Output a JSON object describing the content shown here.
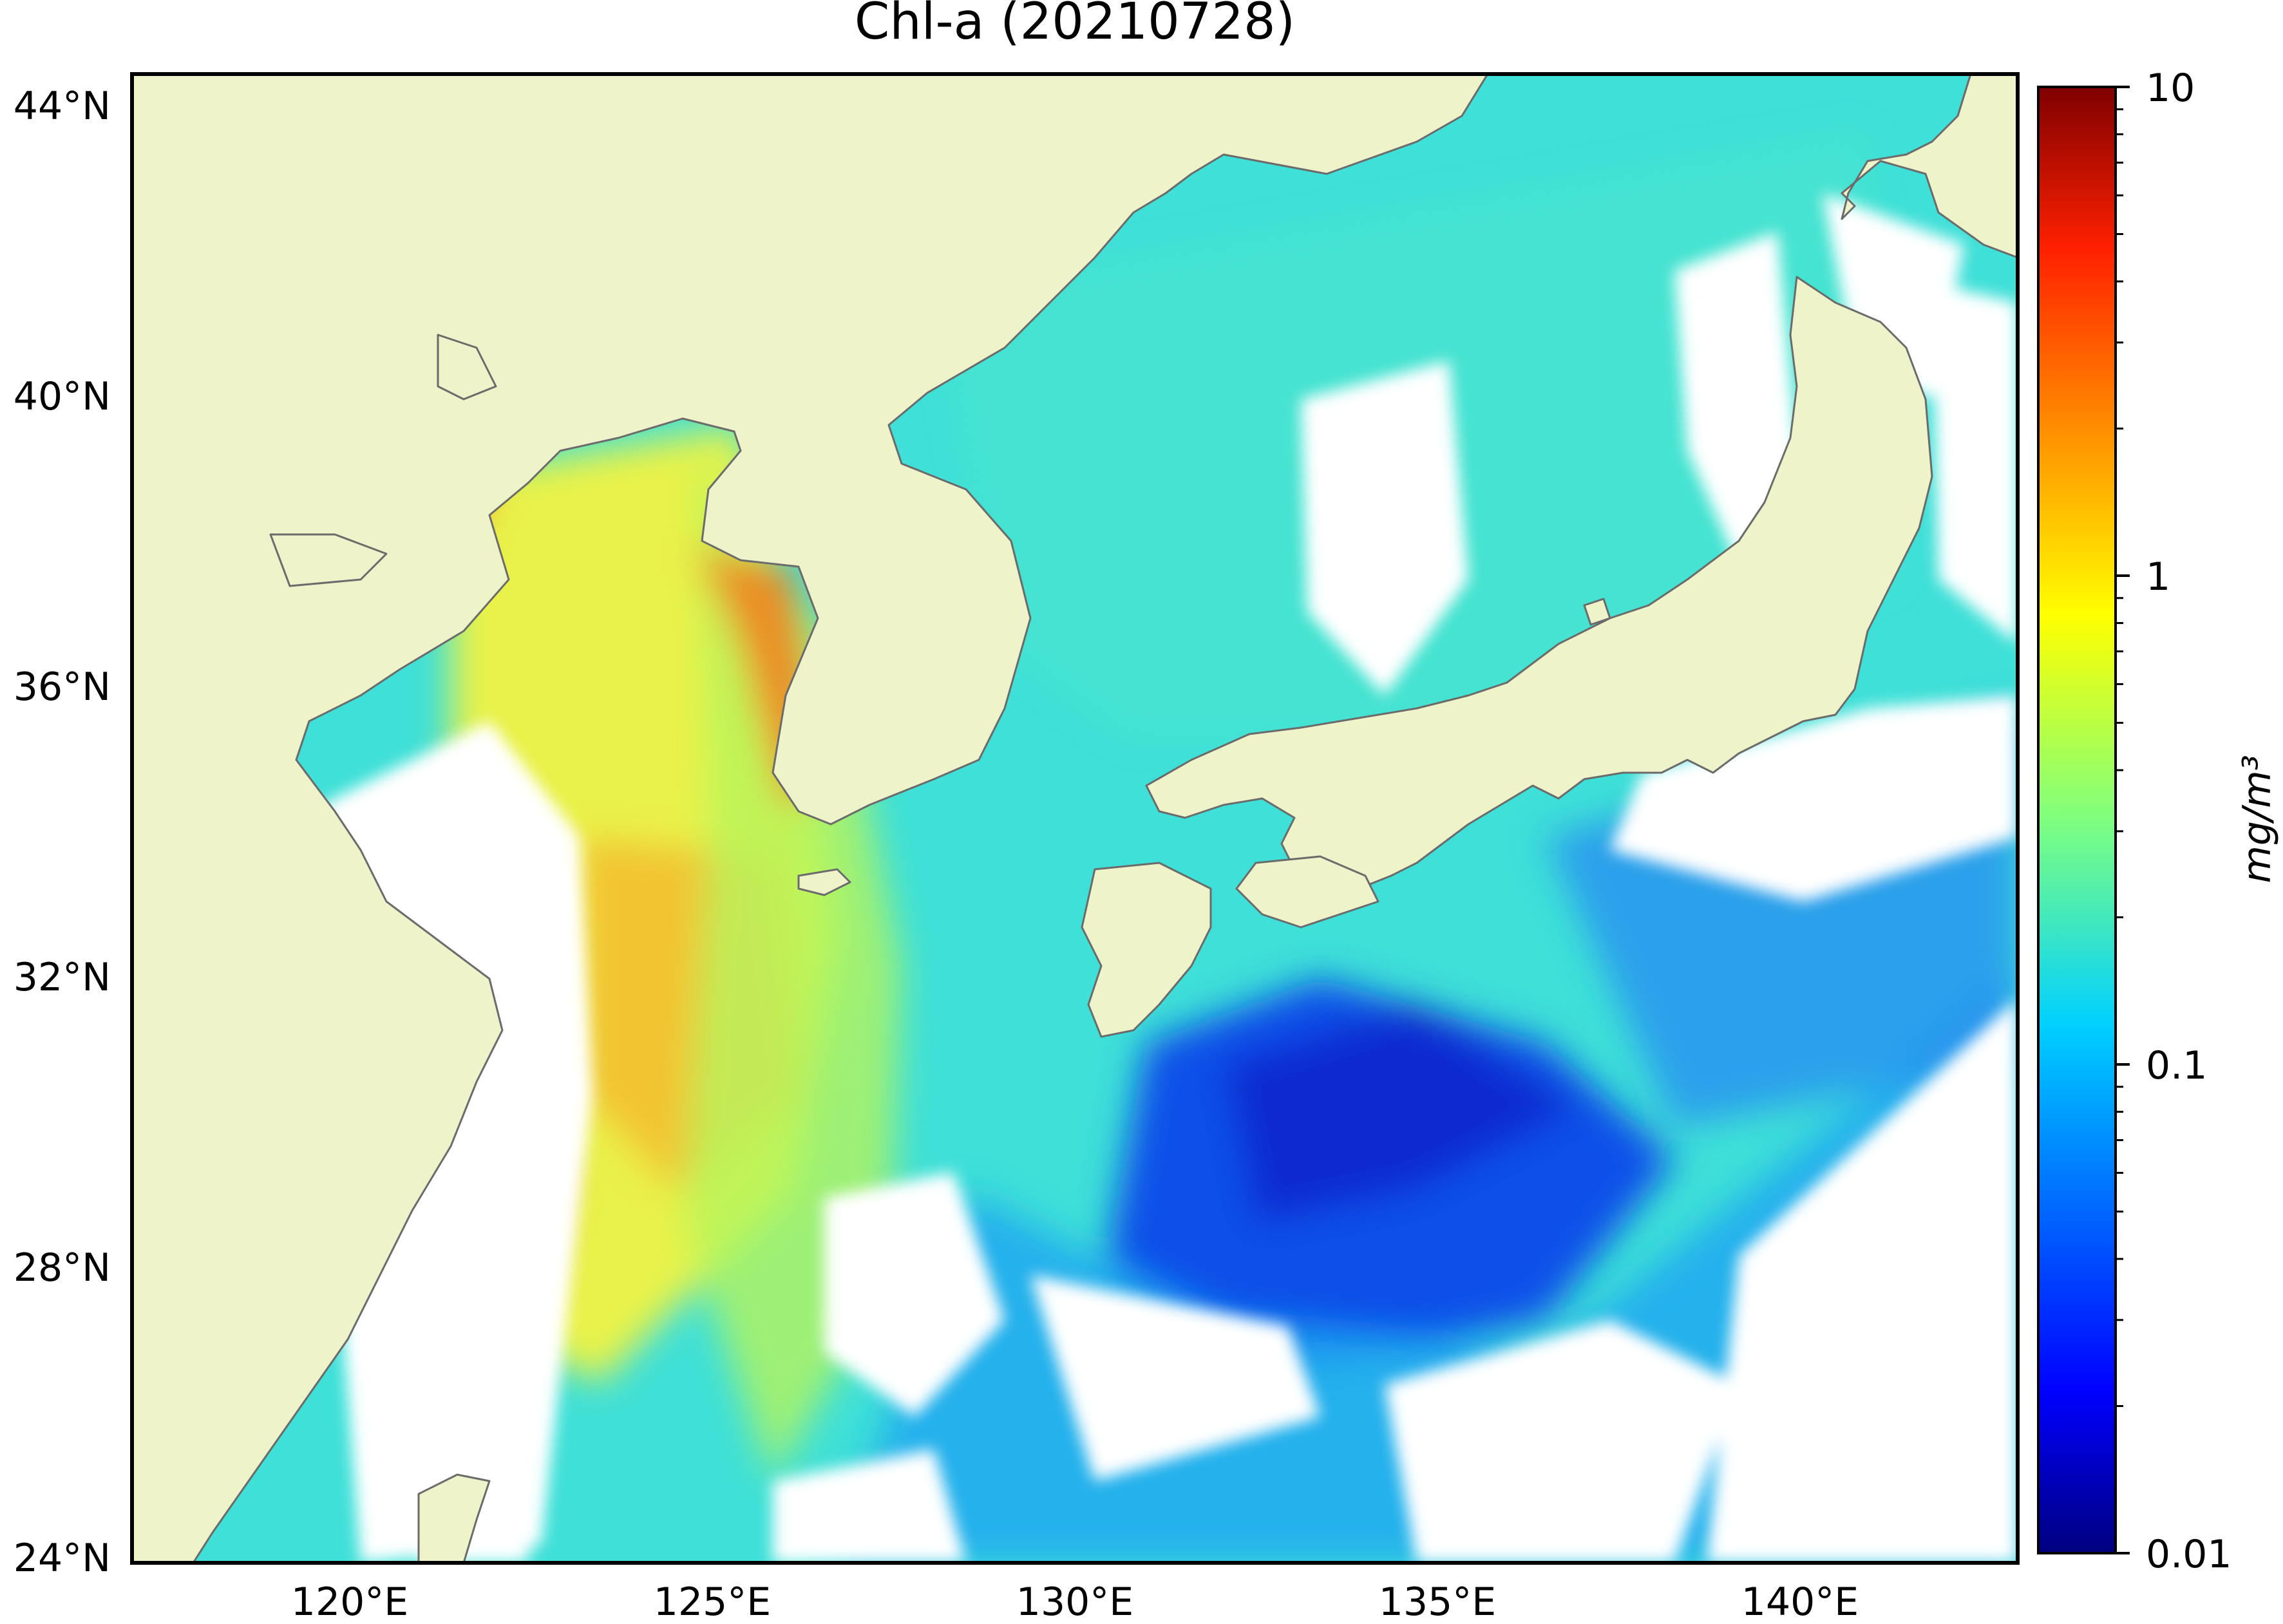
{
  "title": "Chl-a (20210728)",
  "map": {
    "lon_range": [
      117,
      143
    ],
    "lat_range": [
      24,
      44.5
    ],
    "lat_labels": [
      "44°N",
      "40°N",
      "36°N",
      "32°N",
      "28°N",
      "24°N"
    ],
    "lat_values": [
      44,
      40,
      36,
      32,
      28,
      24
    ],
    "lon_labels": [
      "120°E",
      "125°E",
      "130°E",
      "135°E",
      "140°E"
    ],
    "lon_values": [
      120,
      125,
      130,
      135,
      140
    ],
    "land_color": "#eff3c9",
    "coast_color": "#6b6b6b",
    "no_data_color": "#ffffff"
  },
  "colorbar": {
    "label": "mg/m³",
    "scale": "log",
    "range": [
      0.01,
      10
    ],
    "tick_labels": [
      "10",
      "1",
      "0.1",
      "0.01"
    ],
    "tick_values": [
      10,
      1,
      0.1,
      0.01
    ],
    "colormap": "jet",
    "colors": [
      "#00007f",
      "#0000ff",
      "#007fff",
      "#00ffff",
      "#7fff7f",
      "#ffff00",
      "#ff7f00",
      "#ff0000",
      "#7f0000"
    ]
  }
}
